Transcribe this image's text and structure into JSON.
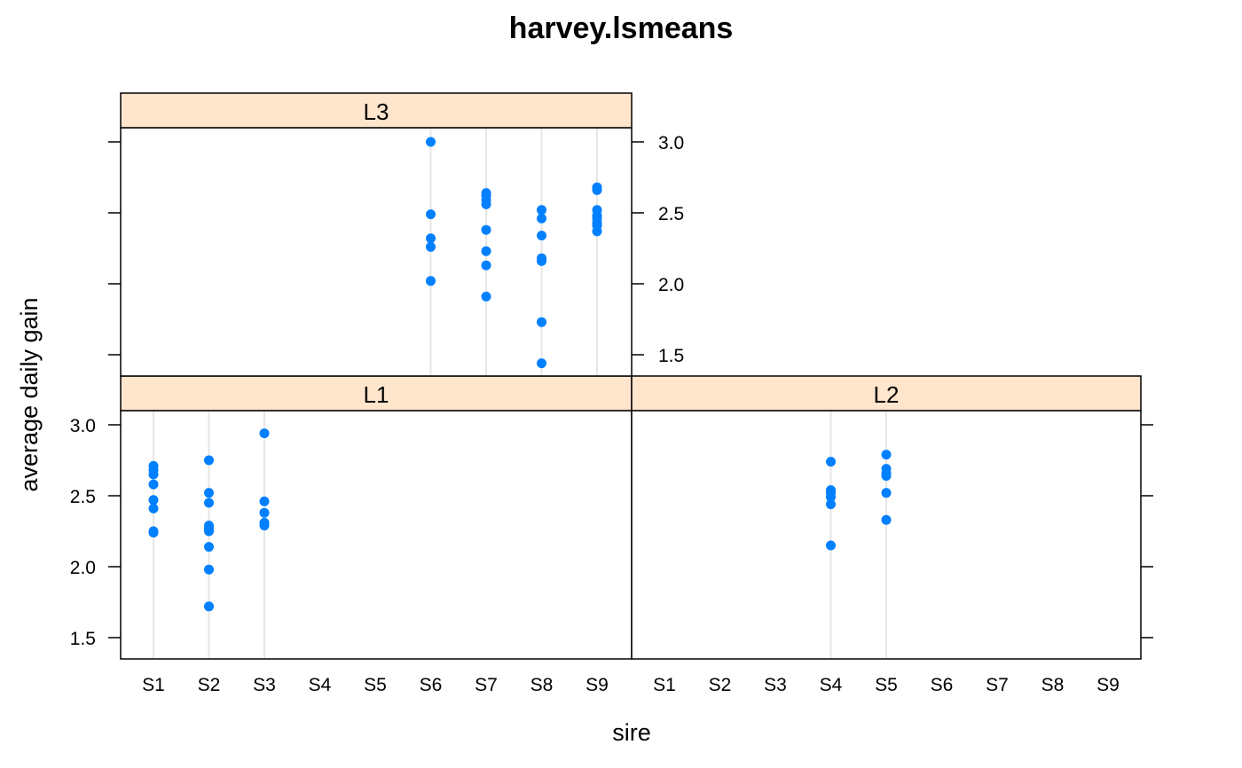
{
  "chart_data": {
    "type": "scatter",
    "title": "harvey.lsmeans",
    "xlabel": "sire",
    "ylabel": "average daily gain",
    "categories": [
      "S1",
      "S2",
      "S3",
      "S4",
      "S5",
      "S6",
      "S7",
      "S8",
      "S9"
    ],
    "ylim": [
      1.35,
      3.1
    ],
    "yticks": [
      1.5,
      2.0,
      2.5,
      3.0
    ],
    "ytick_labels": [
      "1.5",
      "2.0",
      "2.5",
      "3.0"
    ],
    "grid": "vertical reference lines at sires with data",
    "strip_color": "#ffe5cc",
    "point_color": "#0080ff",
    "panels": [
      {
        "name": "L1",
        "points": [
          {
            "x": "S1",
            "y": 2.71
          },
          {
            "x": "S1",
            "y": 2.68
          },
          {
            "x": "S1",
            "y": 2.65
          },
          {
            "x": "S1",
            "y": 2.58
          },
          {
            "x": "S1",
            "y": 2.47
          },
          {
            "x": "S1",
            "y": 2.41
          },
          {
            "x": "S1",
            "y": 2.25
          },
          {
            "x": "S1",
            "y": 2.24
          },
          {
            "x": "S2",
            "y": 2.75
          },
          {
            "x": "S2",
            "y": 2.52
          },
          {
            "x": "S2",
            "y": 2.45
          },
          {
            "x": "S2",
            "y": 2.29
          },
          {
            "x": "S2",
            "y": 2.27
          },
          {
            "x": "S2",
            "y": 2.25
          },
          {
            "x": "S2",
            "y": 2.14
          },
          {
            "x": "S2",
            "y": 1.98
          },
          {
            "x": "S2",
            "y": 1.72
          },
          {
            "x": "S3",
            "y": 2.94
          },
          {
            "x": "S3",
            "y": 2.46
          },
          {
            "x": "S3",
            "y": 2.38
          },
          {
            "x": "S3",
            "y": 2.31
          },
          {
            "x": "S3",
            "y": 2.29
          }
        ]
      },
      {
        "name": "L2",
        "points": [
          {
            "x": "S4",
            "y": 2.74
          },
          {
            "x": "S4",
            "y": 2.54
          },
          {
            "x": "S4",
            "y": 2.52
          },
          {
            "x": "S4",
            "y": 2.49
          },
          {
            "x": "S4",
            "y": 2.44
          },
          {
            "x": "S4",
            "y": 2.15
          },
          {
            "x": "S5",
            "y": 2.79
          },
          {
            "x": "S5",
            "y": 2.69
          },
          {
            "x": "S5",
            "y": 2.66
          },
          {
            "x": "S5",
            "y": 2.64
          },
          {
            "x": "S5",
            "y": 2.52
          },
          {
            "x": "S5",
            "y": 2.33
          }
        ]
      },
      {
        "name": "L3",
        "points": [
          {
            "x": "S6",
            "y": 3.0
          },
          {
            "x": "S6",
            "y": 2.49
          },
          {
            "x": "S6",
            "y": 2.32
          },
          {
            "x": "S6",
            "y": 2.26
          },
          {
            "x": "S6",
            "y": 2.02
          },
          {
            "x": "S7",
            "y": 2.64
          },
          {
            "x": "S7",
            "y": 2.62
          },
          {
            "x": "S7",
            "y": 2.59
          },
          {
            "x": "S7",
            "y": 2.56
          },
          {
            "x": "S7",
            "y": 2.38
          },
          {
            "x": "S7",
            "y": 2.23
          },
          {
            "x": "S7",
            "y": 2.13
          },
          {
            "x": "S7",
            "y": 1.91
          },
          {
            "x": "S8",
            "y": 2.52
          },
          {
            "x": "S8",
            "y": 2.46
          },
          {
            "x": "S8",
            "y": 2.34
          },
          {
            "x": "S8",
            "y": 2.18
          },
          {
            "x": "S8",
            "y": 2.16
          },
          {
            "x": "S8",
            "y": 1.73
          },
          {
            "x": "S8",
            "y": 1.44
          },
          {
            "x": "S9",
            "y": 2.68
          },
          {
            "x": "S9",
            "y": 2.66
          },
          {
            "x": "S9",
            "y": 2.52
          },
          {
            "x": "S9",
            "y": 2.48
          },
          {
            "x": "S9",
            "y": 2.46
          },
          {
            "x": "S9",
            "y": 2.43
          },
          {
            "x": "S9",
            "y": 2.41
          },
          {
            "x": "S9",
            "y": 2.37
          }
        ]
      }
    ]
  }
}
